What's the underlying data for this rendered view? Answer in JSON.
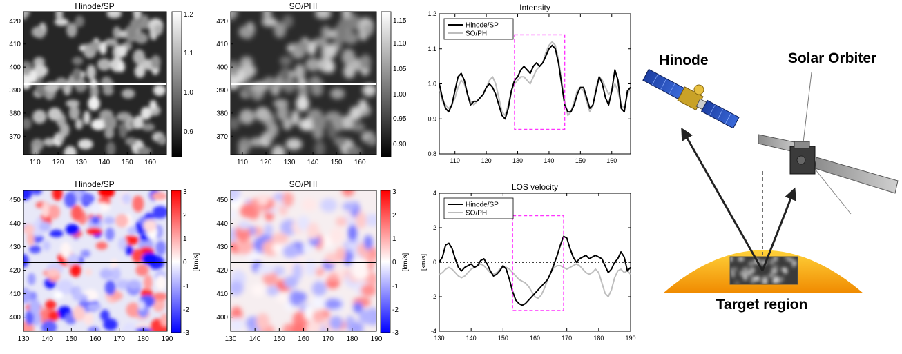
{
  "colors": {
    "hinode_line": "#000000",
    "sophi_line": "#bdbdbd",
    "highlight_box": "#ff33ff",
    "vel_positive": "#e02020",
    "vel_negative": "#1010e8",
    "sun_top": "#ffd23a",
    "sun_bottom": "#f08a00"
  },
  "panels": {
    "int_hinode": {
      "title": "Hinode/SP",
      "colorbar_ticks": [
        "1.2",
        "1.1",
        "1.0",
        "0.9"
      ]
    },
    "int_sophi": {
      "title": "SO/PHI",
      "colorbar_ticks": [
        "1.15",
        "1.10",
        "1.05",
        "1.00",
        "0.95",
        "0.90"
      ]
    },
    "vel_hinode": {
      "title": "Hinode/SP",
      "colorbar_ticks": [
        "3",
        "2",
        "1",
        "0",
        "-1",
        "-2",
        "-3"
      ],
      "colorbar_label": "[km/s]"
    },
    "vel_sophi": {
      "title": "SO/PHI",
      "colorbar_ticks": [
        "3",
        "2",
        "1",
        "0",
        "-1",
        "-2",
        "-3"
      ],
      "colorbar_label": "[km/s]"
    }
  },
  "illustration": {
    "label_hinode": "Hinode",
    "label_solo": "Solar Orbiter",
    "label_target": "Target region"
  },
  "chart_data": [
    {
      "type": "heatmap",
      "title": "Hinode/SP",
      "name": "intensity map",
      "xlim": [
        105,
        167
      ],
      "ylim": [
        362,
        424
      ],
      "xticks": [
        110,
        120,
        130,
        140,
        150,
        160
      ],
      "yticks": [
        370,
        380,
        390,
        400,
        410,
        420
      ],
      "colorbar": {
        "range": [
          0.85,
          1.2
        ],
        "ticks": [
          0.9,
          1.0,
          1.1,
          1.2
        ],
        "colormap": "gray"
      },
      "cut_y": 392
    },
    {
      "type": "heatmap",
      "title": "SO/PHI",
      "name": "intensity map",
      "xlim": [
        105,
        167
      ],
      "ylim": [
        362,
        424
      ],
      "xticks": [
        110,
        120,
        130,
        140,
        150,
        160
      ],
      "yticks": [
        370,
        380,
        390,
        400,
        410,
        420
      ],
      "colorbar": {
        "range": [
          0.87,
          1.16
        ],
        "ticks": [
          0.9,
          0.95,
          1.0,
          1.05,
          1.1,
          1.15
        ],
        "colormap": "gray"
      },
      "cut_y": 392
    },
    {
      "type": "line",
      "title": "Intensity",
      "xlim": [
        105,
        166
      ],
      "ylim": [
        0.8,
        1.2
      ],
      "xticks": [
        110,
        120,
        130,
        140,
        150,
        160
      ],
      "yticks": [
        0.8,
        0.9,
        1.0,
        1.1,
        1.2
      ],
      "ytick_labels": [
        "0.8",
        "0.9",
        "1.0",
        "1.1",
        "1.2"
      ],
      "legend": "top-left",
      "highlight": {
        "x": [
          129,
          145
        ],
        "y": [
          0.87,
          1.14
        ]
      },
      "series": [
        {
          "name": "Hinode/SP",
          "x": [
            105,
            106,
            107,
            108,
            109,
            110,
            111,
            112,
            113,
            114,
            115,
            116,
            117,
            118,
            119,
            120,
            121,
            122,
            123,
            124,
            125,
            126,
            127,
            128,
            129,
            130,
            131,
            132,
            133,
            134,
            135,
            136,
            137,
            138,
            139,
            140,
            141,
            142,
            143,
            144,
            145,
            146,
            147,
            148,
            149,
            150,
            151,
            152,
            153,
            154,
            155,
            156,
            157,
            158,
            159,
            160,
            161,
            162,
            163,
            164,
            165,
            166
          ],
          "values": [
            1.0,
            0.96,
            0.93,
            0.92,
            0.94,
            0.98,
            1.02,
            1.03,
            1.01,
            0.97,
            0.94,
            0.95,
            0.95,
            0.96,
            0.97,
            0.99,
            1.0,
            0.99,
            0.97,
            0.94,
            0.91,
            0.9,
            0.93,
            0.98,
            1.01,
            1.02,
            1.04,
            1.05,
            1.04,
            1.03,
            1.05,
            1.06,
            1.05,
            1.06,
            1.08,
            1.1,
            1.11,
            1.1,
            1.06,
            1.0,
            0.94,
            0.92,
            0.92,
            0.94,
            0.97,
            0.99,
            0.99,
            0.96,
            0.93,
            0.94,
            0.98,
            1.02,
            1.0,
            0.96,
            0.94,
            0.98,
            1.04,
            1.01,
            0.93,
            0.92,
            0.98,
            0.99
          ]
        },
        {
          "name": "SO/PHI",
          "x": [
            105,
            106,
            107,
            108,
            109,
            110,
            111,
            112,
            113,
            114,
            115,
            116,
            117,
            118,
            119,
            120,
            121,
            122,
            123,
            124,
            125,
            126,
            127,
            128,
            129,
            130,
            131,
            132,
            133,
            134,
            135,
            136,
            137,
            138,
            139,
            140,
            141,
            142,
            143,
            144,
            145,
            146,
            147,
            148,
            149,
            150,
            151,
            152,
            153,
            154,
            155,
            156,
            157,
            158,
            159,
            160,
            161,
            162,
            163,
            164,
            165,
            166
          ],
          "values": [
            0.99,
            0.95,
            0.94,
            0.93,
            0.94,
            0.96,
            0.99,
            1.01,
            1.0,
            0.97,
            0.95,
            0.94,
            0.95,
            0.96,
            0.97,
            0.99,
            1.01,
            1.02,
            1.0,
            0.96,
            0.92,
            0.91,
            0.94,
            0.98,
            1.0,
            1.01,
            1.02,
            1.02,
            1.01,
            1.0,
            1.02,
            1.04,
            1.05,
            1.06,
            1.09,
            1.11,
            1.12,
            1.11,
            1.07,
            1.01,
            0.95,
            0.91,
            0.92,
            0.95,
            0.98,
            0.99,
            0.98,
            0.95,
            0.92,
            0.94,
            0.99,
            1.02,
            1.01,
            0.99,
            0.97,
            0.98,
            1.0,
            0.98,
            0.94,
            0.93,
            0.97,
            0.99
          ]
        }
      ]
    },
    {
      "type": "heatmap",
      "title": "Hinode/SP",
      "name": "velocity map",
      "xlim": [
        130,
        190
      ],
      "ylim": [
        394,
        454
      ],
      "xticks": [
        130,
        140,
        150,
        160,
        170,
        180,
        190
      ],
      "yticks": [
        400,
        410,
        420,
        430,
        440,
        450
      ],
      "colorbar": {
        "range": [
          -3,
          3
        ],
        "ticks": [
          3,
          2,
          1,
          0,
          -1,
          -2,
          -3
        ],
        "label": "[km/s]",
        "colormap": "bwr"
      },
      "cut_y": 422
    },
    {
      "type": "heatmap",
      "title": "SO/PHI",
      "name": "velocity map",
      "xlim": [
        130,
        190
      ],
      "ylim": [
        394,
        454
      ],
      "xticks": [
        130,
        140,
        150,
        160,
        170,
        180,
        190
      ],
      "yticks": [
        400,
        410,
        420,
        430,
        440,
        450
      ],
      "colorbar": {
        "range": [
          -3,
          3
        ],
        "ticks": [
          3,
          2,
          1,
          0,
          -1,
          -2,
          -3
        ],
        "label": "[km/s]",
        "colormap": "bwr"
      },
      "cut_y": 422
    },
    {
      "type": "line",
      "title": "LOS velocity",
      "xlim": [
        130,
        190
      ],
      "ylim": [
        -4,
        4
      ],
      "xticks": [
        130,
        140,
        150,
        160,
        170,
        180,
        190
      ],
      "yticks": [
        -4,
        -2,
        0,
        2,
        4
      ],
      "ylabel": "[km/s]",
      "legend": "top-left",
      "zero_line": "dotted",
      "highlight": {
        "x": [
          153,
          169
        ],
        "y": [
          -2.8,
          2.7
        ]
      },
      "series": [
        {
          "name": "Hinode/SP",
          "x": [
            130,
            131,
            132,
            133,
            134,
            135,
            136,
            137,
            138,
            139,
            140,
            141,
            142,
            143,
            144,
            145,
            146,
            147,
            148,
            149,
            150,
            151,
            152,
            153,
            154,
            155,
            156,
            157,
            158,
            159,
            160,
            161,
            162,
            163,
            164,
            165,
            166,
            167,
            168,
            169,
            170,
            171,
            172,
            173,
            174,
            175,
            176,
            177,
            178,
            179,
            180,
            181,
            182,
            183,
            184,
            185,
            186,
            187,
            188,
            189,
            190
          ],
          "values": [
            0.0,
            0.3,
            1.0,
            1.1,
            0.8,
            0.2,
            -0.3,
            -0.5,
            -0.3,
            -0.2,
            -0.1,
            -0.3,
            -0.2,
            0.1,
            0.2,
            -0.1,
            -0.5,
            -0.8,
            -0.7,
            -0.5,
            -0.2,
            -0.4,
            -1.0,
            -1.7,
            -2.2,
            -2.4,
            -2.5,
            -2.4,
            -2.2,
            -2.0,
            -1.8,
            -1.6,
            -1.4,
            -1.2,
            -1.0,
            -0.6,
            -0.1,
            0.4,
            1.0,
            1.5,
            1.4,
            0.8,
            0.3,
            0.0,
            0.2,
            0.3,
            0.4,
            0.2,
            0.3,
            0.4,
            0.3,
            0.2,
            -0.2,
            -0.6,
            -0.4,
            0.0,
            0.2,
            0.6,
            0.3,
            -0.5,
            -0.3
          ]
        },
        {
          "name": "SO/PHI",
          "x": [
            130,
            131,
            132,
            133,
            134,
            135,
            136,
            137,
            138,
            139,
            140,
            141,
            142,
            143,
            144,
            145,
            146,
            147,
            148,
            149,
            150,
            151,
            152,
            153,
            154,
            155,
            156,
            157,
            158,
            159,
            160,
            161,
            162,
            163,
            164,
            165,
            166,
            167,
            168,
            169,
            170,
            171,
            172,
            173,
            174,
            175,
            176,
            177,
            178,
            179,
            180,
            181,
            182,
            183,
            184,
            185,
            186,
            187,
            188,
            189,
            190
          ],
          "values": [
            -0.7,
            -0.6,
            -0.4,
            -0.3,
            -0.4,
            -0.6,
            -0.8,
            -0.9,
            -0.8,
            -0.6,
            -0.4,
            -0.3,
            -0.2,
            -0.1,
            -0.2,
            -0.4,
            -0.6,
            -0.7,
            -0.6,
            -0.4,
            -0.3,
            -0.3,
            -0.4,
            -0.6,
            -0.8,
            -1.0,
            -1.1,
            -1.2,
            -1.4,
            -1.7,
            -2.0,
            -2.1,
            -1.9,
            -1.5,
            -1.0,
            -0.6,
            -0.3,
            -0.2,
            -0.2,
            -0.3,
            -0.4,
            -0.3,
            -0.2,
            -0.1,
            -0.2,
            -0.4,
            -0.6,
            -0.7,
            -0.6,
            -0.4,
            -0.6,
            -1.2,
            -1.8,
            -2.0,
            -1.6,
            -0.9,
            -0.5,
            -0.4,
            -0.6,
            -0.5,
            -0.7
          ]
        }
      ]
    }
  ]
}
